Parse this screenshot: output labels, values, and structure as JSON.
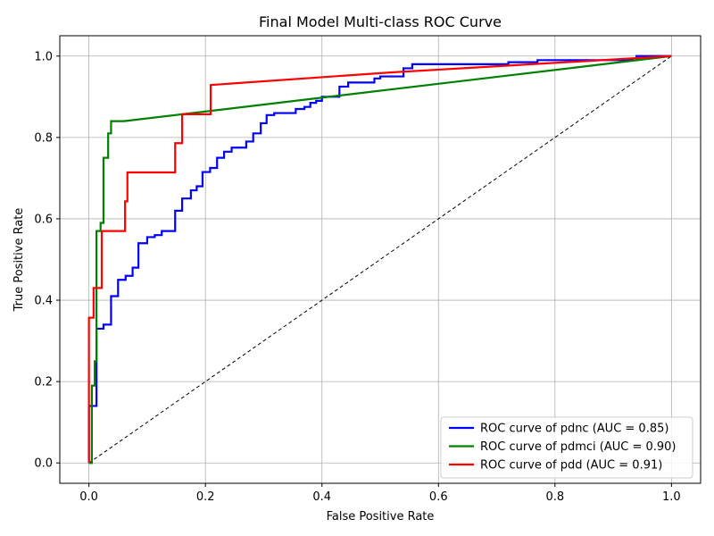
{
  "chart_data": {
    "type": "line",
    "title": "Final Model Multi-class ROC Curve",
    "xlabel": "False Positive Rate",
    "ylabel": "True Positive Rate",
    "xlim": [
      -0.05,
      1.05
    ],
    "ylim": [
      -0.05,
      1.05
    ],
    "xticks": [
      0.0,
      0.2,
      0.4,
      0.6,
      0.8,
      1.0
    ],
    "yticks": [
      0.0,
      0.2,
      0.4,
      0.6,
      0.8,
      1.0
    ],
    "xtick_labels": [
      "0.0",
      "0.2",
      "0.4",
      "0.6",
      "0.8",
      "1.0"
    ],
    "ytick_labels": [
      "0.0",
      "0.2",
      "0.4",
      "0.6",
      "0.8",
      "1.0"
    ],
    "grid": true,
    "legend_position": "lower right",
    "diagonal": {
      "x": [
        0,
        1
      ],
      "y": [
        0,
        1
      ],
      "style": "dashed",
      "color": "#000000"
    },
    "series": [
      {
        "name": "ROC curve of pdnc (AUC = 0.85)",
        "color": "#0000ff",
        "points": [
          [
            0.0,
            0.0
          ],
          [
            0.0,
            0.14
          ],
          [
            0.013,
            0.14
          ],
          [
            0.013,
            0.33
          ],
          [
            0.025,
            0.33
          ],
          [
            0.025,
            0.34
          ],
          [
            0.038,
            0.34
          ],
          [
            0.038,
            0.41
          ],
          [
            0.05,
            0.41
          ],
          [
            0.05,
            0.45
          ],
          [
            0.063,
            0.45
          ],
          [
            0.063,
            0.46
          ],
          [
            0.075,
            0.46
          ],
          [
            0.075,
            0.48
          ],
          [
            0.085,
            0.48
          ],
          [
            0.085,
            0.54
          ],
          [
            0.1,
            0.54
          ],
          [
            0.1,
            0.555
          ],
          [
            0.113,
            0.555
          ],
          [
            0.113,
            0.56
          ],
          [
            0.125,
            0.56
          ],
          [
            0.125,
            0.57
          ],
          [
            0.148,
            0.57
          ],
          [
            0.148,
            0.62
          ],
          [
            0.16,
            0.62
          ],
          [
            0.16,
            0.65
          ],
          [
            0.175,
            0.65
          ],
          [
            0.175,
            0.67
          ],
          [
            0.185,
            0.67
          ],
          [
            0.185,
            0.68
          ],
          [
            0.195,
            0.68
          ],
          [
            0.195,
            0.715
          ],
          [
            0.208,
            0.715
          ],
          [
            0.208,
            0.725
          ],
          [
            0.22,
            0.725
          ],
          [
            0.22,
            0.75
          ],
          [
            0.232,
            0.75
          ],
          [
            0.232,
            0.765
          ],
          [
            0.245,
            0.765
          ],
          [
            0.245,
            0.775
          ],
          [
            0.27,
            0.775
          ],
          [
            0.27,
            0.79
          ],
          [
            0.282,
            0.79
          ],
          [
            0.282,
            0.81
          ],
          [
            0.295,
            0.81
          ],
          [
            0.295,
            0.835
          ],
          [
            0.305,
            0.835
          ],
          [
            0.305,
            0.855
          ],
          [
            0.318,
            0.855
          ],
          [
            0.318,
            0.86
          ],
          [
            0.355,
            0.86
          ],
          [
            0.355,
            0.87
          ],
          [
            0.37,
            0.87
          ],
          [
            0.37,
            0.875
          ],
          [
            0.38,
            0.875
          ],
          [
            0.38,
            0.885
          ],
          [
            0.39,
            0.885
          ],
          [
            0.39,
            0.89
          ],
          [
            0.4,
            0.89
          ],
          [
            0.4,
            0.9
          ],
          [
            0.43,
            0.9
          ],
          [
            0.43,
            0.925
          ],
          [
            0.445,
            0.925
          ],
          [
            0.445,
            0.935
          ],
          [
            0.49,
            0.935
          ],
          [
            0.49,
            0.945
          ],
          [
            0.5,
            0.945
          ],
          [
            0.5,
            0.95
          ],
          [
            0.54,
            0.95
          ],
          [
            0.54,
            0.97
          ],
          [
            0.555,
            0.97
          ],
          [
            0.555,
            0.98
          ],
          [
            0.72,
            0.98
          ],
          [
            0.72,
            0.985
          ],
          [
            0.77,
            0.985
          ],
          [
            0.77,
            0.99
          ],
          [
            0.94,
            0.99
          ],
          [
            0.94,
            1.0
          ],
          [
            1.0,
            1.0
          ]
        ]
      },
      {
        "name": "ROC curve of pdmci (AUC = 0.90)",
        "color": "#008000",
        "points": [
          [
            0.0,
            0.0
          ],
          [
            0.005,
            0.0
          ],
          [
            0.005,
            0.19
          ],
          [
            0.01,
            0.19
          ],
          [
            0.01,
            0.25
          ],
          [
            0.013,
            0.25
          ],
          [
            0.013,
            0.57
          ],
          [
            0.02,
            0.57
          ],
          [
            0.02,
            0.59
          ],
          [
            0.025,
            0.59
          ],
          [
            0.025,
            0.75
          ],
          [
            0.033,
            0.75
          ],
          [
            0.033,
            0.81
          ],
          [
            0.038,
            0.81
          ],
          [
            0.038,
            0.84
          ],
          [
            0.06,
            0.84
          ],
          [
            1.0,
            1.0
          ]
        ]
      },
      {
        "name": "ROC curve of pdd (AUC = 0.91)",
        "color": "#ff0000",
        "points": [
          [
            0.0,
            0.0
          ],
          [
            0.0,
            0.357
          ],
          [
            0.008,
            0.357
          ],
          [
            0.008,
            0.43
          ],
          [
            0.022,
            0.43
          ],
          [
            0.022,
            0.57
          ],
          [
            0.062,
            0.57
          ],
          [
            0.062,
            0.643
          ],
          [
            0.066,
            0.643
          ],
          [
            0.066,
            0.714
          ],
          [
            0.148,
            0.714
          ],
          [
            0.148,
            0.786
          ],
          [
            0.16,
            0.786
          ],
          [
            0.16,
            0.857
          ],
          [
            0.209,
            0.857
          ],
          [
            0.209,
            0.929
          ],
          [
            0.52,
            0.96
          ],
          [
            1.0,
            1.0
          ]
        ]
      }
    ]
  }
}
